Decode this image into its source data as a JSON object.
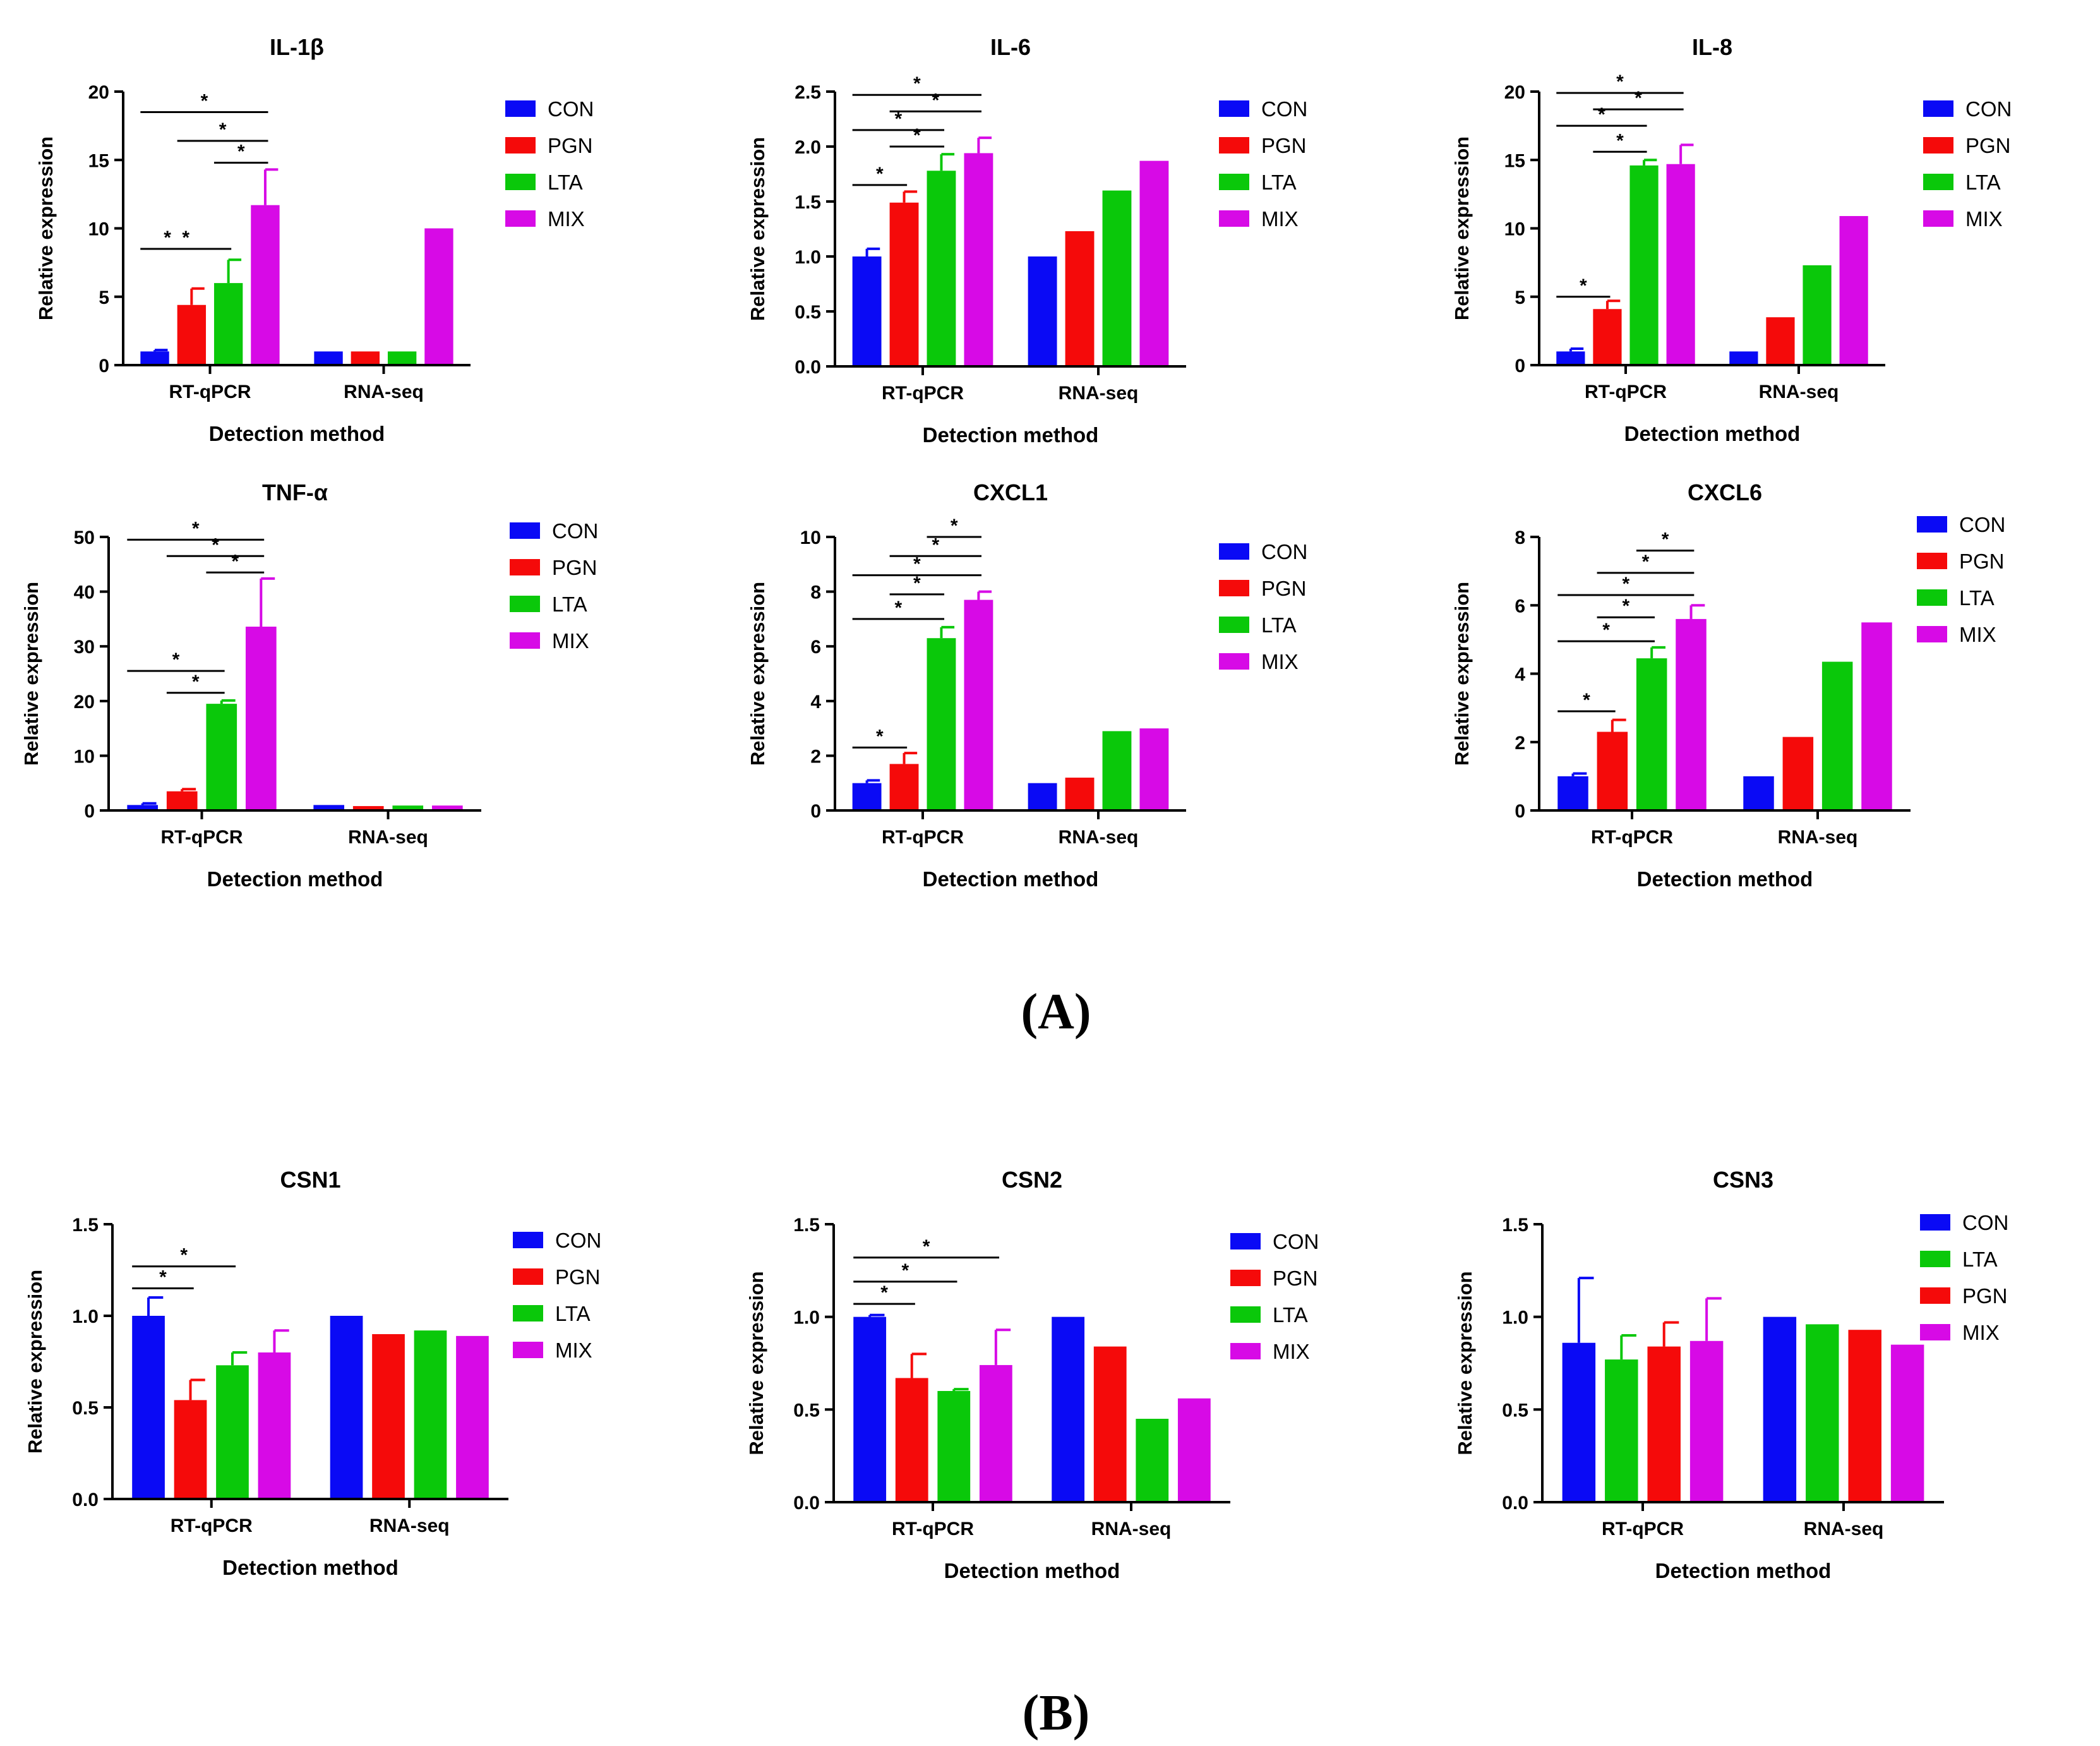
{
  "colors": {
    "CON": "#0a0af5",
    "PGN": "#f50a0a",
    "LTA": "#0ac80a",
    "MIX": "#d70ae6",
    "axis": "#000000"
  },
  "panels": {
    "A": "(A)",
    "B": "(B)"
  },
  "chart_data": [
    {
      "type": "bar",
      "title": "IL-1β",
      "xlabel": "Detection method",
      "ylabel": "Relative expression",
      "ylim": [
        0,
        20
      ],
      "yticks": [
        0,
        5,
        10,
        15,
        20
      ],
      "ytick_labels": [
        "0",
        "5",
        "10",
        "15",
        "20"
      ],
      "categories": [
        "RT-qPCR",
        "RNA-seq"
      ],
      "legend": [
        "CON",
        "PGN",
        "LTA",
        "MIX"
      ],
      "series": [
        {
          "name": "CON",
          "values": [
            1.0,
            1.0
          ],
          "errors": [
            0.1,
            null
          ]
        },
        {
          "name": "PGN",
          "values": [
            4.4,
            1.0
          ],
          "errors": [
            1.2,
            null
          ]
        },
        {
          "name": "LTA",
          "values": [
            6.0,
            1.0
          ],
          "errors": [
            1.7,
            null
          ]
        },
        {
          "name": "MIX",
          "values": [
            11.7,
            10.0
          ],
          "errors": [
            2.6,
            null
          ]
        }
      ],
      "significance": [
        {
          "label": "*",
          "from": 0,
          "to": 1,
          "y": 8.5
        },
        {
          "label": "*",
          "from": 0,
          "to": 2,
          "y": 8.5,
          "level": 1
        },
        {
          "label": "*",
          "from": 2,
          "to": 3,
          "y": 14.8
        },
        {
          "label": "*",
          "from": 1,
          "to": 3,
          "y": 16.4
        },
        {
          "label": "*",
          "from": 0,
          "to": 3,
          "y": 18.5
        }
      ]
    },
    {
      "type": "bar",
      "title": "IL-6",
      "xlabel": "Detection method",
      "ylabel": "Relative expression",
      "ylim": [
        0,
        2.5
      ],
      "yticks": [
        0,
        0.5,
        1.0,
        1.5,
        2.0,
        2.5
      ],
      "ytick_labels": [
        "0.0",
        "0.5",
        "1.0",
        "1.5",
        "2.0",
        "2.5"
      ],
      "categories": [
        "RT-qPCR",
        "RNA-seq"
      ],
      "legend": [
        "CON",
        "PGN",
        "LTA",
        "MIX"
      ],
      "series": [
        {
          "name": "CON",
          "values": [
            1.0,
            1.0
          ],
          "errors": [
            0.07,
            null
          ]
        },
        {
          "name": "PGN",
          "values": [
            1.49,
            1.23
          ],
          "errors": [
            0.1,
            null
          ]
        },
        {
          "name": "LTA",
          "values": [
            1.78,
            1.6
          ],
          "errors": [
            0.15,
            null
          ]
        },
        {
          "name": "MIX",
          "values": [
            1.94,
            1.87
          ],
          "errors": [
            0.14,
            null
          ]
        }
      ],
      "significance": [
        {
          "label": "*",
          "from": 0,
          "to": 1,
          "y": 1.65
        },
        {
          "label": "*",
          "from": 1,
          "to": 2,
          "y": 2.0
        },
        {
          "label": "*",
          "from": 0,
          "to": 2,
          "y": 2.15
        },
        {
          "label": "*",
          "from": 1,
          "to": 3,
          "y": 2.32
        },
        {
          "label": "*",
          "from": 0,
          "to": 3,
          "y": 2.47
        }
      ]
    },
    {
      "type": "bar",
      "title": "IL-8",
      "xlabel": "Detection method",
      "ylabel": "Relative expression",
      "ylim": [
        0,
        20
      ],
      "yticks": [
        0,
        5,
        10,
        15,
        20
      ],
      "ytick_labels": [
        "0",
        "5",
        "10",
        "15",
        "20"
      ],
      "categories": [
        "RT-qPCR",
        "RNA-seq"
      ],
      "legend": [
        "CON",
        "PGN",
        "LTA",
        "MIX"
      ],
      "series": [
        {
          "name": "CON",
          "values": [
            1.0,
            1.0
          ],
          "errors": [
            0.2,
            null
          ]
        },
        {
          "name": "PGN",
          "values": [
            4.1,
            3.5
          ],
          "errors": [
            0.6,
            null
          ]
        },
        {
          "name": "LTA",
          "values": [
            14.6,
            7.3
          ],
          "errors": [
            0.4,
            null
          ]
        },
        {
          "name": "MIX",
          "values": [
            14.7,
            10.9
          ],
          "errors": [
            1.4,
            null
          ]
        }
      ],
      "significance": [
        {
          "label": "*",
          "from": 0,
          "to": 1,
          "y": 5.0
        },
        {
          "label": "*",
          "from": 1,
          "to": 2,
          "y": 15.6
        },
        {
          "label": "*",
          "from": 0,
          "to": 2,
          "y": 17.5
        },
        {
          "label": "*",
          "from": 1,
          "to": 3,
          "y": 18.7
        },
        {
          "label": "*",
          "from": 0,
          "to": 3,
          "y": 19.9
        }
      ]
    },
    {
      "type": "bar",
      "title": "TNF-α",
      "xlabel": "Detection method",
      "ylabel": "Relative expression",
      "ylim": [
        0,
        50
      ],
      "yticks": [
        0,
        10,
        20,
        30,
        40,
        50
      ],
      "ytick_labels": [
        "0",
        "10",
        "20",
        "30",
        "40",
        "50"
      ],
      "categories": [
        "RT-qPCR",
        "RNA-seq"
      ],
      "legend": [
        "CON",
        "PGN",
        "LTA",
        "MIX"
      ],
      "series": [
        {
          "name": "CON",
          "values": [
            1.0,
            1.0
          ],
          "errors": [
            0.3,
            null
          ]
        },
        {
          "name": "PGN",
          "values": [
            3.5,
            0.8
          ],
          "errors": [
            0.4,
            null
          ]
        },
        {
          "name": "LTA",
          "values": [
            19.5,
            0.9
          ],
          "errors": [
            0.6,
            null
          ]
        },
        {
          "name": "MIX",
          "values": [
            33.6,
            0.9
          ],
          "errors": [
            8.8,
            null
          ]
        }
      ],
      "significance": [
        {
          "label": "*",
          "from": 1,
          "to": 2,
          "y": 21.5
        },
        {
          "label": "*",
          "from": 0,
          "to": 2,
          "y": 25.5
        },
        {
          "label": "*",
          "from": 2,
          "to": 3,
          "y": 43.5
        },
        {
          "label": "*",
          "from": 1,
          "to": 3,
          "y": 46.5
        },
        {
          "label": "*",
          "from": 0,
          "to": 3,
          "y": 49.5
        }
      ]
    },
    {
      "type": "bar",
      "title": "CXCL1",
      "xlabel": "Detection method",
      "ylabel": "Relative expression",
      "ylim": [
        0,
        10
      ],
      "yticks": [
        0,
        2,
        4,
        6,
        8,
        10
      ],
      "ytick_labels": [
        "0",
        "2",
        "4",
        "6",
        "8",
        "10"
      ],
      "categories": [
        "RT-qPCR",
        "RNA-seq"
      ],
      "legend": [
        "CON",
        "PGN",
        "LTA",
        "MIX"
      ],
      "series": [
        {
          "name": "CON",
          "values": [
            1.0,
            1.0
          ],
          "errors": [
            0.1,
            null
          ]
        },
        {
          "name": "PGN",
          "values": [
            1.7,
            1.2
          ],
          "errors": [
            0.4,
            null
          ]
        },
        {
          "name": "LTA",
          "values": [
            6.3,
            2.9
          ],
          "errors": [
            0.4,
            null
          ]
        },
        {
          "name": "MIX",
          "values": [
            7.7,
            3.0
          ],
          "errors": [
            0.3,
            null
          ]
        }
      ],
      "significance": [
        {
          "label": "*",
          "from": 0,
          "to": 1,
          "y": 2.3
        },
        {
          "label": "*",
          "from": 0,
          "to": 2,
          "y": 7.0
        },
        {
          "label": "*",
          "from": 1,
          "to": 2,
          "y": 7.9
        },
        {
          "label": "*",
          "from": 0,
          "to": 3,
          "y": 8.6
        },
        {
          "label": "*",
          "from": 1,
          "to": 3,
          "y": 9.3
        },
        {
          "label": "*",
          "from": 2,
          "to": 3,
          "y": 10.0
        }
      ]
    },
    {
      "type": "bar",
      "title": "CXCL6",
      "xlabel": "Detection method",
      "ylabel": "Relative expression",
      "ylim": [
        0,
        8
      ],
      "yticks": [
        0,
        2,
        4,
        6,
        8
      ],
      "ytick_labels": [
        "0",
        "2",
        "4",
        "6",
        "8"
      ],
      "categories": [
        "RT-qPCR",
        "RNA-seq"
      ],
      "legend": [
        "CON",
        "PGN",
        "LTA",
        "MIX"
      ],
      "series": [
        {
          "name": "CON",
          "values": [
            1.0,
            1.0
          ],
          "errors": [
            0.08,
            null
          ]
        },
        {
          "name": "PGN",
          "values": [
            2.3,
            2.15
          ],
          "errors": [
            0.35,
            null
          ]
        },
        {
          "name": "LTA",
          "values": [
            4.45,
            4.35
          ],
          "errors": [
            0.32,
            null
          ]
        },
        {
          "name": "MIX",
          "values": [
            5.6,
            5.5
          ],
          "errors": [
            0.4,
            null
          ]
        }
      ],
      "significance": [
        {
          "label": "*",
          "from": 0,
          "to": 1,
          "y": 2.9
        },
        {
          "label": "*",
          "from": 0,
          "to": 2,
          "y": 4.95
        },
        {
          "label": "*",
          "from": 1,
          "to": 2,
          "y": 5.65
        },
        {
          "label": "*",
          "from": 0,
          "to": 3,
          "y": 6.3
        },
        {
          "label": "*",
          "from": 1,
          "to": 3,
          "y": 6.95
        },
        {
          "label": "*",
          "from": 2,
          "to": 3,
          "y": 7.6
        }
      ]
    },
    {
      "type": "bar",
      "title": "CSN1",
      "xlabel": "Detection method",
      "ylabel": "Relative expression",
      "ylim": [
        0,
        1.5
      ],
      "yticks": [
        0,
        0.5,
        1.0,
        1.5
      ],
      "ytick_labels": [
        "0.0",
        "0.5",
        "1.0",
        "1.5"
      ],
      "categories": [
        "RT-qPCR",
        "RNA-seq"
      ],
      "legend": [
        "CON",
        "PGN",
        "LTA",
        "MIX"
      ],
      "series": [
        {
          "name": "CON",
          "values": [
            1.0,
            1.0
          ],
          "errors": [
            0.1,
            null
          ]
        },
        {
          "name": "PGN",
          "values": [
            0.54,
            0.9
          ],
          "errors": [
            0.11,
            null
          ]
        },
        {
          "name": "LTA",
          "values": [
            0.73,
            0.92
          ],
          "errors": [
            0.07,
            null
          ]
        },
        {
          "name": "MIX",
          "values": [
            0.8,
            0.89
          ],
          "errors": [
            0.12,
            null
          ]
        }
      ],
      "significance": [
        {
          "label": "*",
          "from": 0,
          "to": 1,
          "y": 1.15
        },
        {
          "label": "*",
          "from": 0,
          "to": 2,
          "y": 1.27
        }
      ]
    },
    {
      "type": "bar",
      "title": "CSN2",
      "xlabel": "Detection method",
      "ylabel": "Relative expression",
      "ylim": [
        0,
        1.5
      ],
      "yticks": [
        0,
        0.5,
        1.0,
        1.5
      ],
      "ytick_labels": [
        "0.0",
        "0.5",
        "1.0",
        "1.5"
      ],
      "categories": [
        "RT-qPCR",
        "RNA-seq"
      ],
      "legend": [
        "CON",
        "PGN",
        "LTA",
        "MIX"
      ],
      "series": [
        {
          "name": "CON",
          "values": [
            1.0,
            1.0
          ],
          "errors": [
            0.01,
            null
          ]
        },
        {
          "name": "PGN",
          "values": [
            0.67,
            0.84
          ],
          "errors": [
            0.13,
            null
          ]
        },
        {
          "name": "LTA",
          "values": [
            0.6,
            0.45
          ],
          "errors": [
            0.01,
            null
          ]
        },
        {
          "name": "MIX",
          "values": [
            0.74,
            0.56
          ],
          "errors": [
            0.19,
            null
          ]
        }
      ],
      "significance": [
        {
          "label": "*",
          "from": 0,
          "to": 1,
          "y": 1.07
        },
        {
          "label": "*",
          "from": 0,
          "to": 2,
          "y": 1.19
        },
        {
          "label": "*",
          "from": 0,
          "to": 3,
          "y": 1.32
        }
      ]
    },
    {
      "type": "bar",
      "title": "CSN3",
      "xlabel": "Detection method",
      "ylabel": "Relative expression",
      "ylim": [
        0,
        1.5
      ],
      "yticks": [
        0,
        0.5,
        1.0,
        1.5
      ],
      "ytick_labels": [
        "0.0",
        "0.5",
        "1.0",
        "1.5"
      ],
      "categories": [
        "RT-qPCR",
        "RNA-seq"
      ],
      "legend": [
        "CON",
        "LTA",
        "PGN",
        "MIX"
      ],
      "series": [
        {
          "name": "CON",
          "values": [
            0.86,
            1.0
          ],
          "errors": [
            0.35,
            null
          ]
        },
        {
          "name": "LTA",
          "values": [
            0.77,
            0.96
          ],
          "errors": [
            0.13,
            null
          ]
        },
        {
          "name": "PGN",
          "values": [
            0.84,
            0.93
          ],
          "errors": [
            0.13,
            null
          ]
        },
        {
          "name": "MIX",
          "values": [
            0.87,
            0.85
          ],
          "errors": [
            0.23,
            null
          ]
        }
      ],
      "significance": []
    }
  ]
}
